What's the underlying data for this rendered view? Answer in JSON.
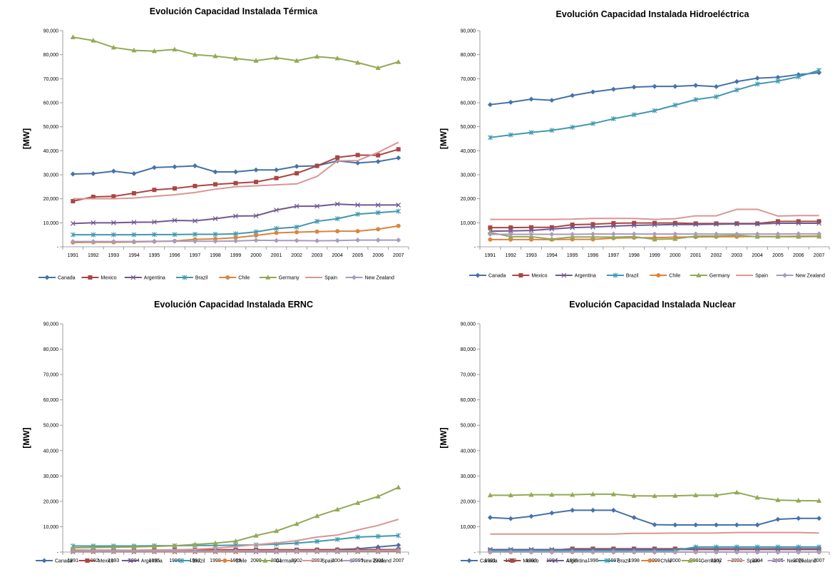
{
  "series_colors": {
    "Canada": "#4572A7",
    "Mexico": "#AA4643",
    "Argentina": "#71588F",
    "Brazil": "#4198AF",
    "Chile": "#DB843D",
    "Germany": "#93A954",
    "Spain": "#D99694",
    "New Zealand": "#A99BBD"
  },
  "series_markers": {
    "Canada": "diamond",
    "Mexico": "square",
    "Argentina": "x",
    "Brazil": "star",
    "Chile": "circle",
    "Germany": "triangle",
    "Spain": "none",
    "New Zealand": "diamond"
  },
  "chart_data": [
    {
      "type": "line",
      "title": "Evolución Capacidad Instalada Térmica",
      "ylabel": "[MW]",
      "ylim": [
        0,
        90000
      ],
      "yticks": [
        "-",
        "10,000",
        "20,000",
        "30,000",
        "40,000",
        "50,000",
        "60,000",
        "70,000",
        "80,000",
        "90,000"
      ],
      "x": [
        "1991",
        "1992",
        "1993",
        "1994",
        "1995",
        "1996",
        "1997",
        "1998",
        "1999",
        "2000",
        "2001",
        "2002",
        "2003",
        "2004",
        "2005",
        "2006",
        "2007"
      ],
      "legend": "bottom",
      "series": [
        {
          "name": "Canada",
          "values": [
            30300,
            30500,
            31500,
            30500,
            33000,
            33300,
            33700,
            31200,
            31200,
            32000,
            32000,
            33500,
            33700,
            35800,
            34900,
            35500,
            37000
          ]
        },
        {
          "name": "Mexico",
          "values": [
            19000,
            20800,
            21000,
            22300,
            23700,
            24300,
            25300,
            26000,
            26500,
            27000,
            28600,
            30600,
            33700,
            37200,
            38200,
            38100,
            40600
          ]
        },
        {
          "name": "Argentina",
          "values": [
            9700,
            10000,
            10000,
            10200,
            10300,
            11000,
            10800,
            11700,
            12800,
            12900,
            15300,
            16900,
            16900,
            17800,
            17400,
            17400,
            17400
          ]
        },
        {
          "name": "Brazil",
          "values": [
            5000,
            5000,
            5000,
            5000,
            5100,
            5100,
            5200,
            5200,
            5400,
            6200,
            7600,
            8200,
            10600,
            11700,
            13600,
            14200,
            14800
          ]
        },
        {
          "name": "Chile",
          "values": [
            1800,
            1900,
            1900,
            2000,
            2200,
            2400,
            3100,
            3300,
            3800,
            4700,
            5800,
            6100,
            6300,
            6500,
            6500,
            7300,
            8700
          ]
        },
        {
          "name": "Germany",
          "values": [
            87300,
            85900,
            83000,
            81800,
            81500,
            82200,
            80000,
            79400,
            78400,
            77500,
            78700,
            77500,
            79200,
            78500,
            76700,
            74500,
            77000
          ]
        },
        {
          "name": "Spain",
          "values": [
            20000,
            20000,
            20000,
            20300,
            21000,
            21700,
            22600,
            24000,
            25000,
            25400,
            25800,
            26200,
            29300,
            35800,
            35900,
            39300,
            43500
          ]
        },
        {
          "name": "New Zealand",
          "values": [
            2200,
            2200,
            2200,
            2200,
            2300,
            2300,
            2300,
            2300,
            2400,
            2700,
            2600,
            2600,
            2500,
            2600,
            2800,
            2800,
            2800
          ]
        }
      ]
    },
    {
      "type": "line",
      "title": "Evolución Capacidad Instalada Hidroeléctrica",
      "ylabel": "[MW]",
      "ylim": [
        0,
        90000
      ],
      "yticks": [
        "-",
        "10,000",
        "20,000",
        "30,000",
        "40,000",
        "50,000",
        "60,000",
        "70,000",
        "80,000",
        "90,000"
      ],
      "x": [
        "1991",
        "1992",
        "1993",
        "1994",
        "1995",
        "1996",
        "1997",
        "1998",
        "1999",
        "2000",
        "2001",
        "2002",
        "2003",
        "2004",
        "2005",
        "2006",
        "2007"
      ],
      "legend": "bottom",
      "series": [
        {
          "name": "Canada",
          "values": [
            59200,
            60200,
            61500,
            61000,
            63000,
            64500,
            65600,
            66500,
            66800,
            66800,
            67200,
            66700,
            68800,
            70200,
            70600,
            71700,
            72500
          ]
        },
        {
          "name": "Mexico",
          "values": [
            8000,
            8000,
            8100,
            8100,
            9200,
            9400,
            9800,
            9900,
            9900,
            9900,
            9700,
            9700,
            9700,
            9700,
            10600,
            10600,
            10600
          ]
        },
        {
          "name": "Argentina",
          "values": [
            6500,
            6600,
            6800,
            7400,
            8000,
            8200,
            8600,
            8900,
            9100,
            9300,
            9300,
            9400,
            9500,
            9500,
            9800,
            9800,
            9800
          ]
        },
        {
          "name": "Brazil",
          "values": [
            45500,
            46600,
            47600,
            48500,
            49800,
            51300,
            53300,
            55000,
            56700,
            59000,
            61300,
            62500,
            65300,
            67800,
            69000,
            70800,
            73500
          ]
        },
        {
          "name": "Chile",
          "values": [
            3000,
            3000,
            3000,
            3000,
            3100,
            3100,
            3600,
            3800,
            3800,
            4000,
            4100,
            4200,
            4200,
            4300,
            4300,
            4400,
            4500
          ]
        },
        {
          "name": "Germany",
          "values": [
            6000,
            4200,
            4200,
            3200,
            4100,
            4100,
            4000,
            4200,
            3100,
            3300,
            4400,
            4500,
            4800,
            4200,
            4200,
            4200,
            4300
          ]
        },
        {
          "name": "Spain",
          "values": [
            11400,
            11400,
            11400,
            11400,
            11500,
            11800,
            11800,
            11800,
            11400,
            11700,
            12900,
            12900,
            15600,
            15600,
            12800,
            13000,
            13000
          ]
        },
        {
          "name": "New Zealand",
          "values": [
            5200,
            5200,
            5200,
            5200,
            5200,
            5300,
            5300,
            5300,
            5300,
            5300,
            5300,
            5300,
            5300,
            5300,
            5300,
            5400,
            5400
          ]
        }
      ]
    },
    {
      "type": "line",
      "title": "Evolución Capacidad Instalada ERNC",
      "ylabel": "[MW]",
      "ylim": [
        0,
        90000
      ],
      "yticks": [
        "-",
        "10,000",
        "20,000",
        "30,000",
        "40,000",
        "50,000",
        "60,000",
        "70,000",
        "80,000",
        "90,000"
      ],
      "x": [
        "1991",
        "1992",
        "1993",
        "1994",
        "1995",
        "1996",
        "1997",
        "1998",
        "1999",
        "2000",
        "2001",
        "2002",
        "2003",
        "2004",
        "2005",
        "2006",
        "2007"
      ],
      "legend": "bottom",
      "series": [
        {
          "name": "Canada",
          "values": [
            400,
            400,
            400,
            400,
            500,
            500,
            500,
            500,
            500,
            600,
            600,
            700,
            900,
            1000,
            1300,
            2000,
            2700
          ]
        },
        {
          "name": "Mexico",
          "values": [
            700,
            700,
            700,
            700,
            800,
            800,
            800,
            900,
            900,
            900,
            900,
            900,
            900,
            900,
            900,
            1000,
            1000
          ]
        },
        {
          "name": "Argentina",
          "values": [
            100,
            100,
            100,
            100,
            100,
            100,
            100,
            100,
            100,
            100,
            100,
            200,
            200,
            200,
            200,
            200,
            300
          ]
        },
        {
          "name": "Brazil",
          "values": [
            2400,
            2400,
            2400,
            2400,
            2500,
            2500,
            2600,
            2600,
            2700,
            2800,
            3100,
            3500,
            4200,
            5000,
            5900,
            6200,
            6500
          ]
        },
        {
          "name": "Chile",
          "values": [
            200,
            200,
            200,
            200,
            200,
            200,
            200,
            200,
            200,
            300,
            300,
            300,
            300,
            300,
            300,
            300,
            400
          ]
        },
        {
          "name": "Germany",
          "values": [
            1700,
            1800,
            1900,
            2000,
            2200,
            2500,
            3000,
            3500,
            4300,
            6500,
            8300,
            11100,
            14200,
            16800,
            19400,
            21900,
            25500
          ]
        },
        {
          "name": "Spain",
          "values": [
            500,
            600,
            600,
            700,
            800,
            900,
            1100,
            1500,
            2200,
            2900,
            3600,
            4500,
            5900,
            6700,
            8700,
            10500,
            12900
          ]
        },
        {
          "name": "New Zealand",
          "values": [
            400,
            400,
            400,
            400,
            400,
            400,
            400,
            500,
            500,
            500,
            500,
            500,
            500,
            500,
            600,
            600,
            700
          ]
        }
      ]
    },
    {
      "type": "line",
      "title": "Evolución Capacidad Instalada Nuclear",
      "ylabel": "[MW]",
      "ylim": [
        0,
        90000
      ],
      "yticks": [
        "-",
        "10,000",
        "20,000",
        "30,000",
        "40,000",
        "50,000",
        "60,000",
        "70,000",
        "80,000",
        "90,000"
      ],
      "x": [
        "1991",
        "1992",
        "1993",
        "1994",
        "1995",
        "1996",
        "1997",
        "1998",
        "1999",
        "2000",
        "2001",
        "2002",
        "2003",
        "2004",
        "2005",
        "2006",
        "2007"
      ],
      "legend": "bottom",
      "series": [
        {
          "name": "Canada",
          "values": [
            13600,
            13200,
            14100,
            15400,
            16500,
            16500,
            16500,
            13600,
            10800,
            10700,
            10700,
            10700,
            10700,
            10700,
            12900,
            13300,
            13300
          ]
        },
        {
          "name": "Mexico",
          "values": [
            700,
            700,
            700,
            700,
            1300,
            1300,
            1300,
            1300,
            1300,
            1300,
            1300,
            1300,
            1300,
            1300,
            1300,
            1300,
            1300
          ]
        },
        {
          "name": "Argentina",
          "values": [
            1000,
            1000,
            1000,
            1000,
            1000,
            1000,
            1000,
            1000,
            1000,
            1000,
            1000,
            1000,
            1000,
            1000,
            1000,
            1000,
            1000
          ]
        },
        {
          "name": "Brazil",
          "values": [
            600,
            600,
            600,
            600,
            600,
            600,
            600,
            600,
            600,
            600,
            2000,
            2000,
            2000,
            2000,
            2000,
            2000,
            2000
          ]
        },
        {
          "name": "Chile",
          "values": [
            0,
            0,
            0,
            0,
            0,
            0,
            0,
            0,
            0,
            0,
            0,
            0,
            0,
            0,
            0,
            0,
            0
          ]
        },
        {
          "name": "Germany",
          "values": [
            22400,
            22400,
            22600,
            22600,
            22600,
            22800,
            22800,
            22200,
            22100,
            22200,
            22400,
            22400,
            23500,
            21500,
            20500,
            20300,
            20200
          ]
        },
        {
          "name": "Spain",
          "values": [
            7100,
            7100,
            7100,
            7100,
            7100,
            7100,
            7100,
            7400,
            7400,
            7500,
            7500,
            7500,
            7700,
            7700,
            7700,
            7700,
            7500
          ]
        },
        {
          "name": "New Zealand",
          "values": [
            0,
            0,
            0,
            0,
            0,
            0,
            0,
            0,
            0,
            0,
            0,
            0,
            0,
            0,
            0,
            0,
            0
          ]
        }
      ]
    }
  ]
}
